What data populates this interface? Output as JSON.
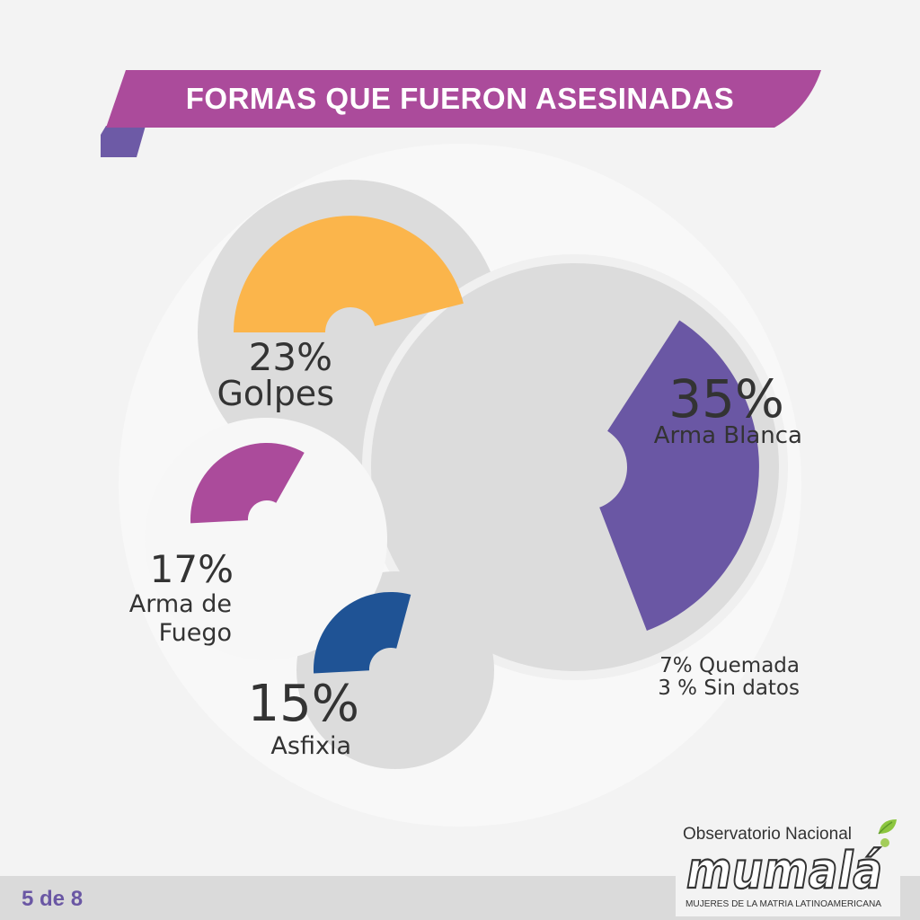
{
  "title": "FORMAS QUE FUERON ASESINADAS",
  "page_indicator": "5 de 8",
  "colors": {
    "background": "#f3f3f3",
    "ring_gray": "#dcdcdc",
    "banner": "#ab4b9b",
    "banner_fold": "#6d5aa6",
    "footer_bar": "#dadada",
    "text_dark": "#333333",
    "accent_purple": "#6a57a4"
  },
  "chart_data": {
    "type": "pie",
    "title": "FORMAS QUE FUERON ASESINADAS",
    "series": [
      {
        "label": "Arma Blanca",
        "value": 35,
        "value_label": "35%",
        "color": "#6a57a4"
      },
      {
        "label": "Golpes",
        "value": 23,
        "value_label": "23%",
        "color": "#fbb54b"
      },
      {
        "label": "Arma de Fuego",
        "value": 17,
        "value_label": "17%",
        "color": "#ab4b9b"
      },
      {
        "label": "Asfixia",
        "value": 15,
        "value_label": "15%",
        "color": "#1f5395"
      },
      {
        "label": "Quemada",
        "value": 7,
        "value_label": "7% Quemada"
      },
      {
        "label": "Sin datos",
        "value": 3,
        "value_label": "3 % Sin datos"
      }
    ]
  },
  "labels": {
    "golpes_pct": "23%",
    "golpes_name": "Golpes",
    "arma_blanca_pct": "35%",
    "arma_blanca_name": "Arma Blanca",
    "arma_fuego_pct": "17%",
    "arma_fuego_line1": "Arma de",
    "arma_fuego_line2": "Fuego",
    "asfixia_pct": "15%",
    "asfixia_name": "Asfixia",
    "quemada_note": "7% Quemada",
    "sin_datos_note": "3 % Sin datos"
  },
  "logo": {
    "top_text": "Observatorio Nacional",
    "wordmark": "mumalá",
    "subtitle": "MUJERES DE LA MATRIA LATINOAMERICANA",
    "leaf_icon": "leaf-icon"
  }
}
